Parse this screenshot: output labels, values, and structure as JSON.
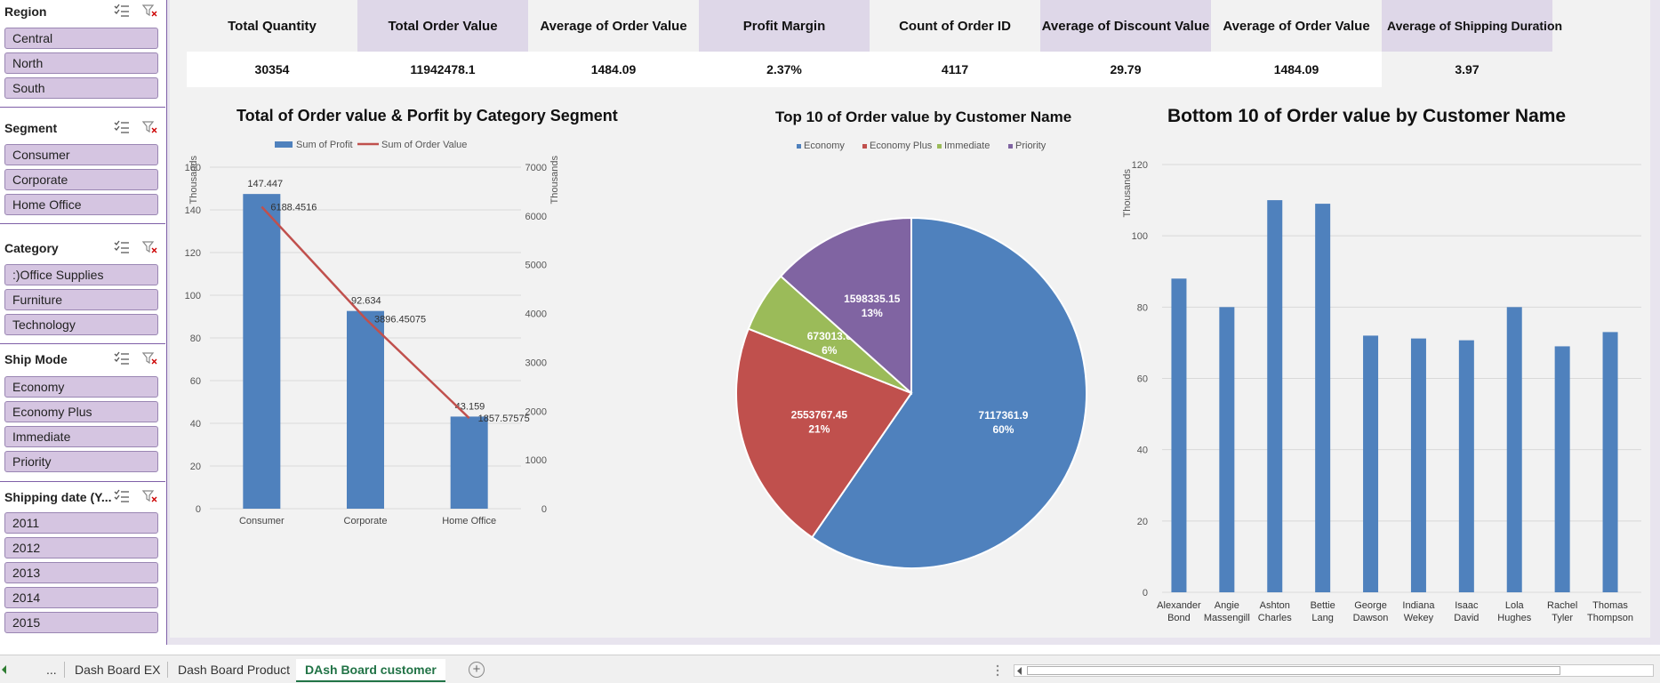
{
  "slicers": [
    {
      "title": "Region",
      "items": [
        "Central",
        "North",
        "South"
      ]
    },
    {
      "title": "Segment",
      "items": [
        "Consumer",
        "Corporate",
        "Home Office"
      ]
    },
    {
      "title": "Category",
      "items": [
        ":)Office Supplies",
        "Furniture",
        "Technology"
      ]
    },
    {
      "title": "Ship Mode",
      "items": [
        "Economy",
        "Economy Plus",
        "Immediate",
        "Priority"
      ]
    },
    {
      "title": "Shipping date (Y...",
      "items": [
        "2011",
        "2012",
        "2013",
        "2014",
        "2015"
      ]
    }
  ],
  "kpis": [
    {
      "label": "Total Quantity",
      "value": "30354"
    },
    {
      "label": "Total Order Value",
      "value": "11942478.1"
    },
    {
      "label": "Average of Order Value",
      "value": "1484.09"
    },
    {
      "label": "Profit Margin",
      "value": "2.37%"
    },
    {
      "label": "Count of Order ID",
      "value": "4117"
    },
    {
      "label": "Average of Discount Value",
      "value": "29.79"
    },
    {
      "label": "Average of Order Value",
      "value": "1484.09"
    },
    {
      "label": "Average of Shipping Duration",
      "value": "3.97"
    }
  ],
  "chart_data": [
    {
      "type": "bar",
      "title": "Total of Order value & Porfit by Category Segment",
      "categories": [
        "Consumer",
        "Corporate",
        "Home Office"
      ],
      "series": [
        {
          "name": "Sum of Profit",
          "kind": "bar",
          "axis": "left",
          "values": [
            147.447,
            92.634,
            43.159
          ],
          "labels": [
            "147.447",
            "92.634",
            "43.159"
          ],
          "color": "#4f81bd"
        },
        {
          "name": "Sum of Order Value",
          "kind": "line",
          "axis": "right",
          "values": [
            6188.4516,
            3896.45075,
            1857.57575
          ],
          "labels": [
            "6188.4516",
            "3896.45075",
            "1857.57575"
          ],
          "color": "#c0504d"
        }
      ],
      "ylabel": "Thousands",
      "y2label": "Thousands",
      "ylim": [
        0,
        160
      ],
      "yticks": [
        "0",
        "20",
        "40",
        "60",
        "80",
        "100",
        "120",
        "140",
        "160"
      ],
      "y2lim": [
        0,
        7000
      ],
      "y2ticks": [
        "0",
        "1000",
        "2000",
        "3000",
        "4000",
        "5000",
        "6000",
        "7000"
      ],
      "legend": "top",
      "grid": true
    },
    {
      "type": "pie",
      "title": "Top 10  of Order value by Customer Name",
      "categories": [
        "Economy",
        "Economy Plus",
        "Immediate",
        "Priority"
      ],
      "values": [
        7117361.9,
        2553767.45,
        673013.6,
        1598335.15
      ],
      "value_labels": [
        "7117361.9",
        "2553767.45",
        "673013.6",
        "1598335.15"
      ],
      "percent_labels": [
        "60%",
        "21%",
        "6%",
        "13%"
      ],
      "colors": [
        "#4f81bd",
        "#c0504d",
        "#9bbb59",
        "#8064a2"
      ],
      "legend": "top"
    },
    {
      "type": "bar",
      "title": "Bottom 10  of Order value by Customer Name",
      "categories": [
        "Alexander Bond",
        "Angie Massengill",
        "Ashton Charles",
        "Bettie Lang",
        "George Dawson",
        "Indiana Wekey",
        "Isaac David",
        "Lola Hughes",
        "Rachel Tyler",
        "Thomas Thompson"
      ],
      "values": [
        88,
        80,
        110,
        109,
        72,
        71.2,
        70.7,
        80,
        69,
        73
      ],
      "ylabel": "Thousands",
      "ylim": [
        0,
        120
      ],
      "yticks": [
        "0",
        "20",
        "40",
        "60",
        "80",
        "100",
        "120"
      ],
      "color": "#4f81bd",
      "grid": true
    }
  ],
  "tabs": {
    "ellipsis": "...",
    "items": [
      "Dash Board EX",
      "Dash Board Product",
      "DAsh Board customer"
    ],
    "active": "DAsh Board customer",
    "add": "+"
  }
}
